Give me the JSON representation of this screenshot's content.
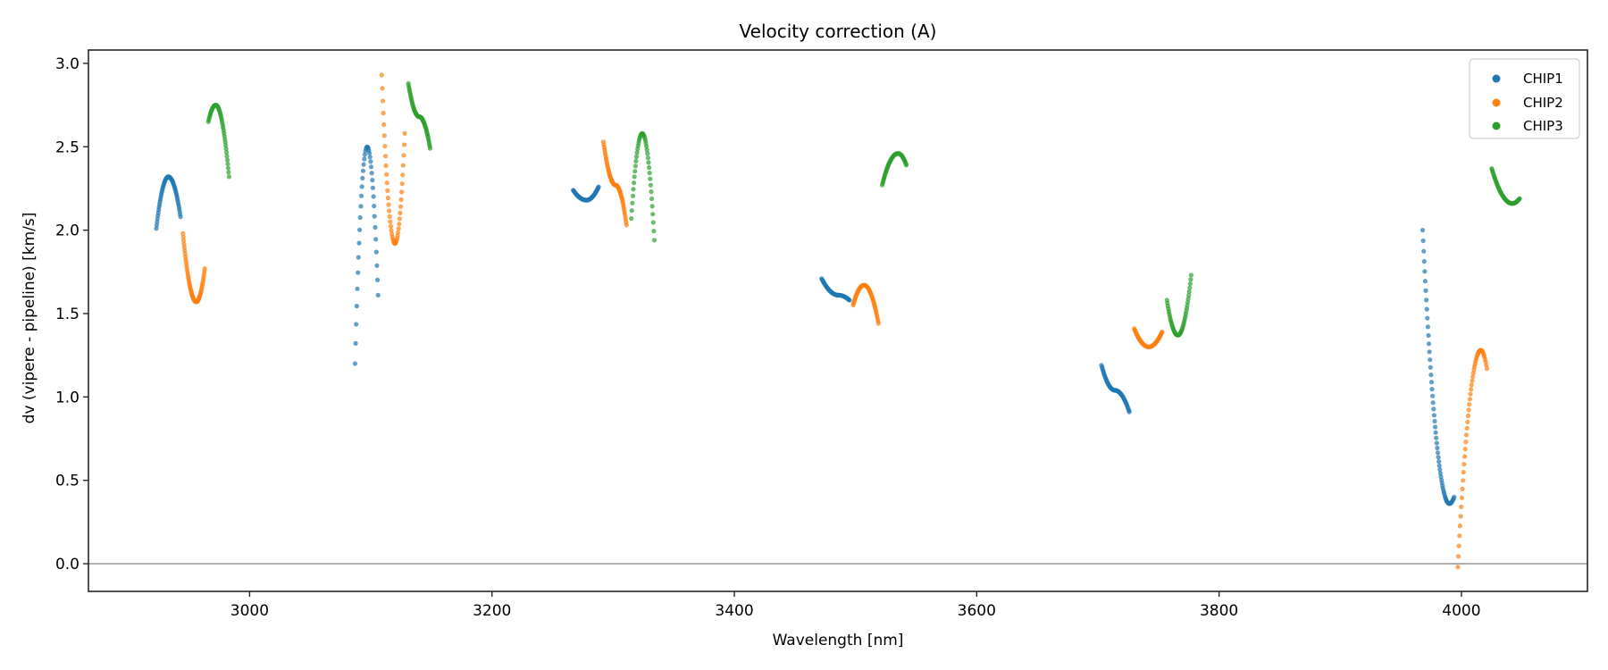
{
  "chart_data": {
    "type": "scatter",
    "title": "Velocity correction (A)",
    "xlabel": "Wavelength [nm]",
    "ylabel": "dv (vipere - pipeline) [km/s]",
    "xlim": [
      2867,
      4104
    ],
    "ylim": [
      -0.166,
      3.08
    ],
    "xticks": [
      3000,
      3200,
      3400,
      3600,
      3800,
      4000
    ],
    "xtick_labels": [
      "3000",
      "3200",
      "3400",
      "3600",
      "3800",
      "4000"
    ],
    "yticks": [
      0.0,
      0.5,
      1.0,
      1.5,
      2.0,
      2.5,
      3.0
    ],
    "ytick_labels": [
      "0.0",
      "0.5",
      "1.0",
      "1.5",
      "2.0",
      "2.5",
      "3.0"
    ],
    "hline": 0.0,
    "grid": false,
    "legend_position": "top-right",
    "series": [
      {
        "name": "CHIP1",
        "color": "#1f77b4",
        "segments": [
          {
            "x": [
              2923,
              2933,
              2943
            ],
            "y": [
              2.01,
              2.32,
              2.08
            ],
            "n": 60
          },
          {
            "x": [
              3087,
              3097,
              3106
            ],
            "y": [
              1.2,
              2.5,
              1.61
            ],
            "n": 40
          },
          {
            "x": [
              3267,
              3278,
              3288
            ],
            "y": [
              2.24,
              2.18,
              2.26
            ],
            "n": 60
          },
          {
            "x": [
              3472,
              3486,
              3495
            ],
            "y": [
              1.71,
              1.61,
              1.58
            ],
            "n": 60
          },
          {
            "x": [
              3703,
              3714,
              3726
            ],
            "y": [
              1.19,
              1.04,
              0.91
            ],
            "n": 60
          },
          {
            "x": [
              3968,
              3990,
              3994
            ],
            "y": [
              2.0,
              0.36,
              0.4
            ],
            "n": 60
          }
        ]
      },
      {
        "name": "CHIP2",
        "color": "#ff7f0e",
        "segments": [
          {
            "x": [
              2945,
              2956,
              2963
            ],
            "y": [
              1.98,
              1.57,
              1.77
            ],
            "n": 60
          },
          {
            "x": [
              3109,
              3120,
              3128
            ],
            "y": [
              2.93,
              1.92,
              2.58
            ],
            "n": 44
          },
          {
            "x": [
              3292,
              3302,
              3311
            ],
            "y": [
              2.53,
              2.27,
              2.03
            ],
            "n": 60
          },
          {
            "x": [
              3498,
              3507,
              3519
            ],
            "y": [
              1.55,
              1.67,
              1.44
            ],
            "n": 60
          },
          {
            "x": [
              3730,
              3742,
              3753
            ],
            "y": [
              1.41,
              1.3,
              1.39
            ],
            "n": 60
          },
          {
            "x": [
              3997,
              4016,
              4021
            ],
            "y": [
              -0.02,
              1.28,
              1.17
            ],
            "n": 50
          }
        ]
      },
      {
        "name": "CHIP3",
        "color": "#2ca02c",
        "segments": [
          {
            "x": [
              2966,
              2972,
              2983
            ],
            "y": [
              2.65,
              2.75,
              2.32
            ],
            "n": 50
          },
          {
            "x": [
              3131,
              3140,
              3149
            ],
            "y": [
              2.88,
              2.68,
              2.49
            ],
            "n": 60
          },
          {
            "x": [
              3315,
              3324,
              3334
            ],
            "y": [
              2.07,
              2.58,
              1.94
            ],
            "n": 44
          },
          {
            "x": [
              3522,
              3535,
              3542
            ],
            "y": [
              2.27,
              2.46,
              2.39
            ],
            "n": 60
          },
          {
            "x": [
              3757,
              3766,
              3777
            ],
            "y": [
              1.58,
              1.37,
              1.73
            ],
            "n": 50
          },
          {
            "x": [
              4025,
              4042,
              4048
            ],
            "y": [
              2.37,
              2.16,
              2.19
            ],
            "n": 60
          }
        ]
      }
    ]
  }
}
